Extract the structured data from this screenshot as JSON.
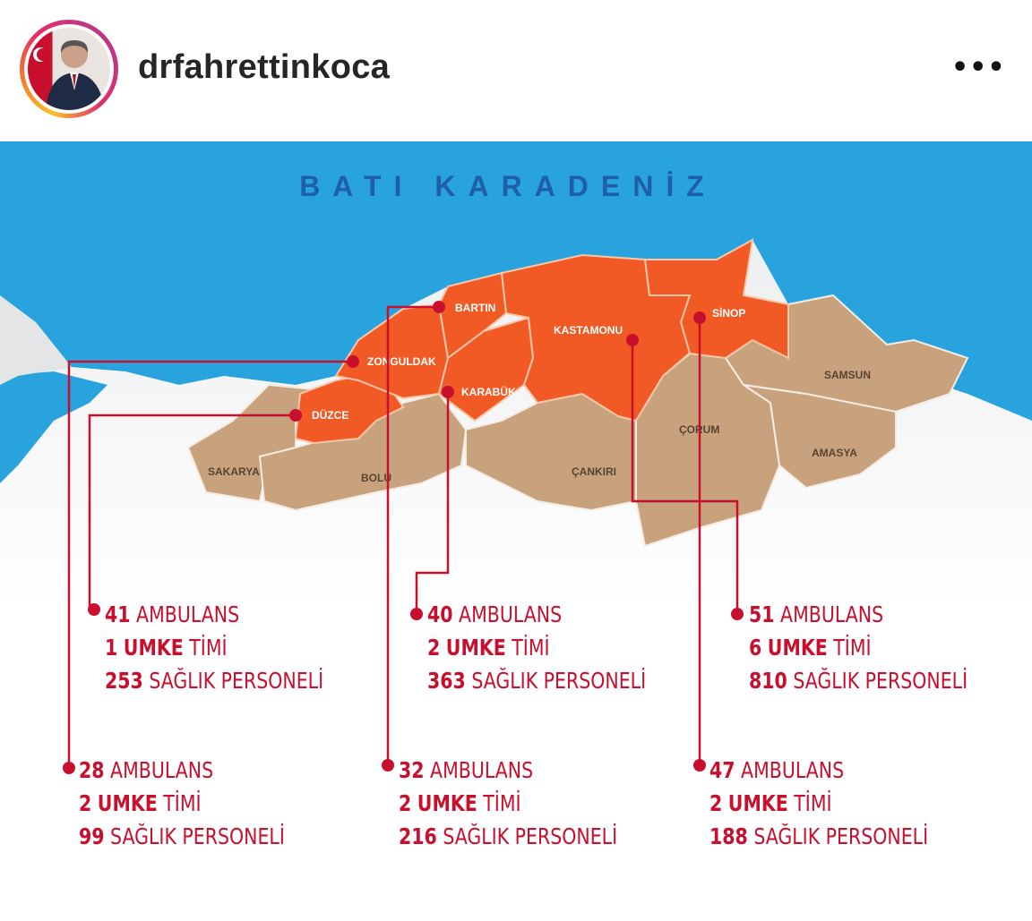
{
  "header": {
    "username": "drfahrettinkoca",
    "more_icon": "more-horizontal-icon",
    "story_ring_colors": [
      "#f9c02b",
      "#e1306c",
      "#c13584"
    ]
  },
  "map": {
    "title": "BATI KARADENİZ",
    "colors": {
      "sea": "#29a3de",
      "highlight": "#f15a24",
      "other": "#c8a27c",
      "marker": "#c8102e"
    },
    "regions": {
      "bartin": "BARTIN",
      "zonguldak": "ZONGULDAK",
      "duzce": "DÜZCE",
      "karabuk": "KARABÜK",
      "kastamonu": "KASTAMONU",
      "sinop": "SİNOP",
      "samsun": "SAMSUN",
      "corum": "ÇORUM",
      "amasya": "AMASYA",
      "cankiri": "ÇANKIRI",
      "bolu": "BOLU",
      "sakarya": "SAKARYA"
    }
  },
  "stats": [
    {
      "province": "Düzce",
      "ambulance": "41",
      "ambulance_label": "AMBULANS",
      "umke": "1",
      "umke_label": "UMKE",
      "team_label": "TİMİ",
      "staff": "253",
      "staff_label": "SAĞLIK PERSONELİ"
    },
    {
      "province": "Karabük",
      "ambulance": "40",
      "ambulance_label": "AMBULANS",
      "umke": "2",
      "umke_label": "UMKE",
      "team_label": "TİMİ",
      "staff": "363",
      "staff_label": "SAĞLIK PERSONELİ"
    },
    {
      "province": "Kastamonu",
      "ambulance": "51",
      "ambulance_label": "AMBULANS",
      "umke": "6",
      "umke_label": "UMKE",
      "team_label": "TİMİ",
      "staff": "810",
      "staff_label": "SAĞLIK PERSONELİ"
    },
    {
      "province": "Zonguldak",
      "ambulance": "28",
      "ambulance_label": "AMBULANS",
      "umke": "2",
      "umke_label": "UMKE",
      "team_label": "TİMİ",
      "staff": "99",
      "staff_label": "SAĞLIK PERSONELİ"
    },
    {
      "province": "Bartın",
      "ambulance": "32",
      "ambulance_label": "AMBULANS",
      "umke": "2",
      "umke_label": "UMKE",
      "team_label": "TİMİ",
      "staff": "216",
      "staff_label": "SAĞLIK PERSONELİ"
    },
    {
      "province": "Sinop",
      "ambulance": "47",
      "ambulance_label": "AMBULANS",
      "umke": "2",
      "umke_label": "UMKE",
      "team_label": "TİMİ",
      "staff": "188",
      "staff_label": "SAĞLIK PERSONELİ"
    }
  ]
}
